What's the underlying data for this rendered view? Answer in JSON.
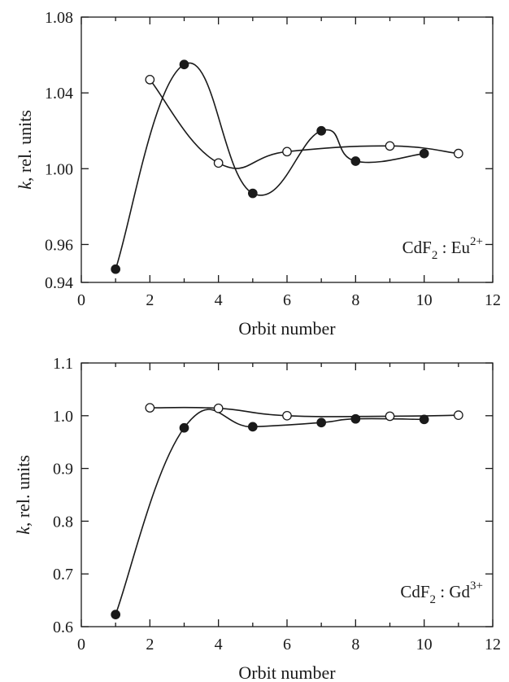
{
  "chart_data": [
    {
      "type": "scatter",
      "xlabel": "Orbit number",
      "ylabel_italic": "k",
      "ylabel_rest": ", rel. units",
      "xlim": [
        0,
        12
      ],
      "ylim": [
        0.94,
        1.08
      ],
      "xticks": [
        0,
        2,
        4,
        6,
        8,
        10,
        12
      ],
      "xtick_labels": [
        "0",
        "2",
        "4",
        "6",
        "8",
        "10",
        "12"
      ],
      "yticks": [
        0.94,
        0.96,
        1.0,
        1.04,
        1.08
      ],
      "ytick_labels": [
        "0.94",
        "0.96",
        "1.00",
        "1.04",
        "1.08"
      ],
      "annotation": {
        "base": "CdF",
        "sub": "2",
        "mid": " : Eu",
        "sup": "2+"
      },
      "series": [
        {
          "marker": "filled",
          "x": [
            1,
            3,
            5,
            7,
            8,
            10
          ],
          "y": [
            0.947,
            1.055,
            0.987,
            1.02,
            1.004,
            1.008
          ]
        },
        {
          "marker": "open",
          "x": [
            2,
            4,
            6,
            9,
            11
          ],
          "y": [
            1.047,
            1.003,
            1.009,
            1.012,
            1.008
          ]
        }
      ]
    },
    {
      "type": "scatter",
      "xlabel": "Orbit number",
      "ylabel_italic": "k",
      "ylabel_rest": ", rel. units",
      "xlim": [
        0,
        12
      ],
      "ylim": [
        0.6,
        1.1
      ],
      "xticks": [
        0,
        2,
        4,
        6,
        8,
        10,
        12
      ],
      "xtick_labels": [
        "0",
        "2",
        "4",
        "6",
        "8",
        "10",
        "12"
      ],
      "yticks": [
        0.6,
        0.7,
        0.8,
        0.9,
        1.0,
        1.1
      ],
      "ytick_labels": [
        "0.6",
        "0.7",
        "0.8",
        "0.9",
        "1.0",
        "1.1"
      ],
      "annotation": {
        "base": "CdF",
        "sub": "2",
        "mid": " : Gd",
        "sup": "3+"
      },
      "series": [
        {
          "marker": "filled",
          "x": [
            1,
            3,
            5,
            7,
            8,
            10
          ],
          "y": [
            0.623,
            0.977,
            0.979,
            0.987,
            0.994,
            0.993
          ]
        },
        {
          "marker": "open",
          "x": [
            2,
            4,
            6,
            9,
            11
          ],
          "y": [
            1.015,
            1.014,
            1.0,
            0.999,
            1.001
          ]
        }
      ]
    }
  ]
}
